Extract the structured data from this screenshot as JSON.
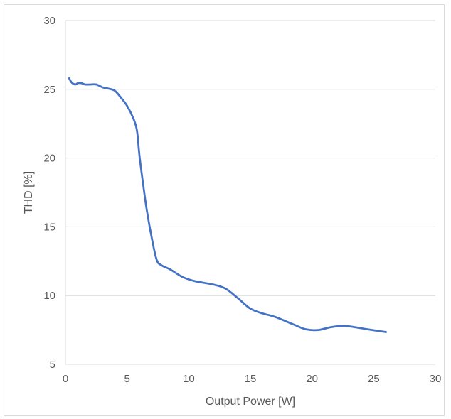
{
  "chart_data": {
    "type": "line",
    "title": "",
    "xlabel": "Output Power [W]",
    "ylabel": "THD [%]",
    "xlim": [
      0,
      30
    ],
    "ylim": [
      5,
      30
    ],
    "x_ticks": [
      "0",
      "5",
      "10",
      "15",
      "20",
      "25",
      "30"
    ],
    "y_ticks": [
      "5",
      "10",
      "15",
      "20",
      "25",
      "30"
    ],
    "grid": "horizontal",
    "legend": "none",
    "series": [
      {
        "color": "#4472c4",
        "x": [
          0.3,
          0.5,
          0.8,
          1.0,
          1.3,
          1.6,
          2.0,
          2.5,
          3.0,
          3.5,
          4.0,
          4.5,
          5.0,
          5.5,
          5.8,
          6.0,
          6.3,
          6.6,
          7.0,
          7.4,
          7.8,
          8.5,
          9.5,
          10.5,
          12.0,
          13.0,
          14.0,
          15.0,
          16.0,
          17.0,
          18.5,
          19.5,
          20.5,
          21.5,
          22.5,
          23.5,
          24.5,
          26.0
        ],
        "y": [
          25.8,
          25.5,
          25.35,
          25.45,
          25.45,
          25.35,
          25.35,
          25.35,
          25.15,
          25.05,
          24.9,
          24.4,
          23.8,
          22.9,
          22.0,
          20.2,
          18.1,
          16.2,
          14.2,
          12.6,
          12.2,
          11.9,
          11.35,
          11.05,
          10.8,
          10.5,
          9.8,
          9.05,
          8.7,
          8.45,
          7.9,
          7.55,
          7.5,
          7.7,
          7.8,
          7.7,
          7.55,
          7.35
        ]
      }
    ]
  }
}
